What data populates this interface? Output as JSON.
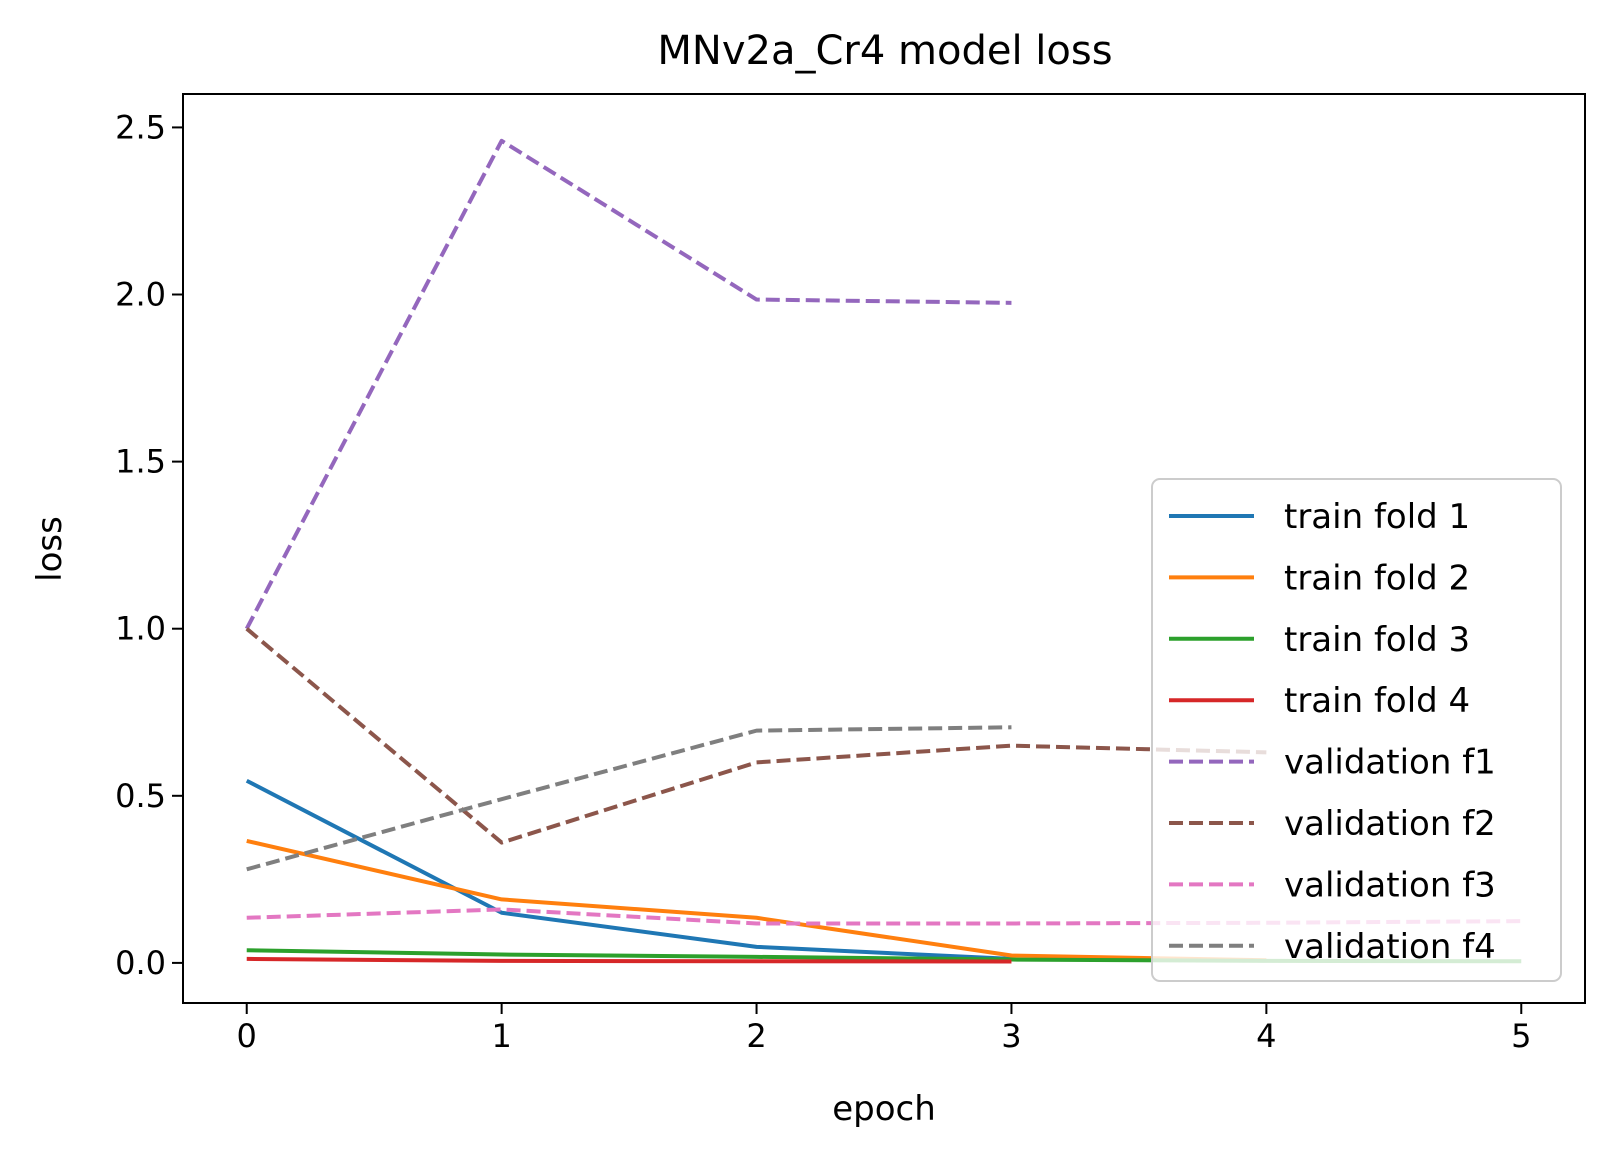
{
  "chart_data": {
    "type": "line",
    "title": "MNv2a_Cr4 model loss",
    "xlabel": "epoch",
    "ylabel": "loss",
    "xlim": [
      -0.25,
      5.25
    ],
    "ylim": [
      -0.12,
      2.6
    ],
    "xticks": [
      0,
      1,
      2,
      3,
      4,
      5
    ],
    "xtick_labels": [
      "0",
      "1",
      "2",
      "3",
      "4",
      "5"
    ],
    "yticks": [
      0.0,
      0.5,
      1.0,
      1.5,
      2.0,
      2.5
    ],
    "ytick_labels": [
      "0.0",
      "0.5",
      "1.0",
      "1.5",
      "2.0",
      "2.5"
    ],
    "grid": false,
    "legend_position": "lower-right",
    "series": [
      {
        "name": "train fold 1",
        "color": "#1f77b4",
        "dash": "solid",
        "x": [
          0,
          1,
          2,
          3
        ],
        "values": [
          0.545,
          0.15,
          0.048,
          0.012
        ]
      },
      {
        "name": "train fold 2",
        "color": "#ff7f0e",
        "dash": "solid",
        "x": [
          0,
          1,
          2,
          3,
          4
        ],
        "values": [
          0.365,
          0.19,
          0.135,
          0.022,
          0.008
        ]
      },
      {
        "name": "train fold 3",
        "color": "#2ca02c",
        "dash": "solid",
        "x": [
          0,
          1,
          2,
          3,
          4,
          5
        ],
        "values": [
          0.038,
          0.025,
          0.018,
          0.01,
          0.006,
          0.005
        ]
      },
      {
        "name": "train fold 4",
        "color": "#d62728",
        "dash": "solid",
        "x": [
          0,
          1,
          2,
          3
        ],
        "values": [
          0.012,
          0.006,
          0.005,
          0.004
        ]
      },
      {
        "name": "validation f1",
        "color": "#9467bd",
        "dash": "dashed",
        "x": [
          0,
          1,
          2,
          3
        ],
        "values": [
          1.0,
          2.46,
          1.985,
          1.975
        ]
      },
      {
        "name": "validation f2",
        "color": "#8c564b",
        "dash": "dashed",
        "x": [
          0,
          1,
          2,
          3,
          4
        ],
        "values": [
          1.0,
          0.36,
          0.6,
          0.65,
          0.63
        ]
      },
      {
        "name": "validation f3",
        "color": "#e377c2",
        "dash": "dashed",
        "x": [
          0,
          1,
          2,
          3,
          4,
          5
        ],
        "values": [
          0.135,
          0.16,
          0.118,
          0.118,
          0.12,
          0.125
        ]
      },
      {
        "name": "validation f4",
        "color": "#7f7f7f",
        "dash": "dashed",
        "x": [
          0,
          1,
          2,
          3
        ],
        "values": [
          0.28,
          0.49,
          0.695,
          0.705
        ]
      }
    ]
  }
}
